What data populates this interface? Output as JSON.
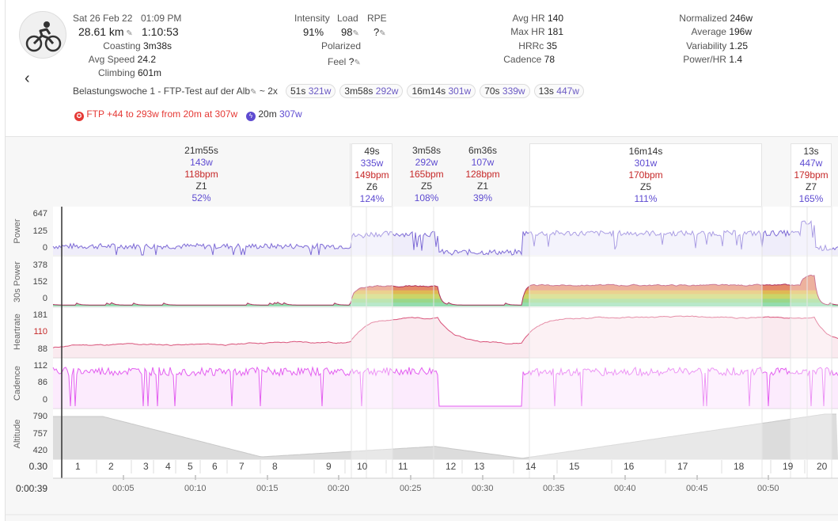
{
  "activity": {
    "date": "Sat 26 Feb 22",
    "time": "01:09 PM",
    "distance": "28.61 km",
    "duration": "1:10:53",
    "coasting_label": "Coasting",
    "coasting": "3m38s",
    "avg_speed_label": "Avg Speed",
    "avg_speed": "24.2",
    "climbing_label": "Climbing",
    "climbing": "601m"
  },
  "load": {
    "intensity_label": "Intensity",
    "intensity": "91%",
    "load_label": "Load",
    "load": "98",
    "rpe_label": "RPE",
    "rpe": "?",
    "polarized": "Polarized",
    "feel_label": "Feel",
    "feel": "?"
  },
  "hr": {
    "avg_hr_label": "Avg HR",
    "avg_hr": "140",
    "max_hr_label": "Max HR",
    "max_hr": "181",
    "hrrc_label": "HRRc",
    "hrrc": "35",
    "cadence_label": "Cadence",
    "cadence": "78"
  },
  "power": {
    "normalized_label": "Normalized",
    "normalized": "246w",
    "average_label": "Average",
    "average": "196w",
    "variability_label": "Variability",
    "variability": "1.25",
    "power_hr_label": "Power/HR",
    "power_hr": "1.4"
  },
  "title": "Belastungswoche 1 - FTP-Test auf der Alb",
  "tilde": "~",
  "x2": "2x",
  "chips": [
    {
      "d": "51s",
      "w": "321w"
    },
    {
      "d": "3m58s",
      "w": "292w"
    },
    {
      "d": "16m14s",
      "w": "301w"
    },
    {
      "d": "70s",
      "w": "339w"
    },
    {
      "d": "13s",
      "w": "447w"
    }
  ],
  "ftp_text": "FTP +44 to 293w from 20m at 307w",
  "twenty_label": "20m",
  "twenty_value": "307w",
  "intervals": [
    {
      "d": "21m55s",
      "w": "143w",
      "hr": "118bpm",
      "z": "Z1",
      "p": "52%"
    },
    {
      "d": "49s",
      "w": "335w",
      "hr": "149bpm",
      "z": "Z6",
      "p": "124%"
    },
    {
      "d": "3m58s",
      "w": "292w",
      "hr": "165bpm",
      "z": "Z5",
      "p": "108%"
    },
    {
      "d": "6m36s",
      "w": "107w",
      "hr": "128bpm",
      "z": "Z1",
      "p": "39%"
    },
    {
      "d": "16m14s",
      "w": "301w",
      "hr": "170bpm",
      "z": "Z5",
      "p": "111%"
    },
    {
      "d": "13s",
      "w": "447w",
      "hr": "179bpm",
      "z": "Z7",
      "p": "165%"
    }
  ],
  "panels": {
    "power": {
      "label": "Power",
      "ticks": [
        "647",
        "125",
        "0"
      ]
    },
    "power30": {
      "label": "30s Power",
      "ticks": [
        "378",
        "152",
        "0"
      ]
    },
    "heartrate": {
      "label": "Heartrate",
      "ticks": [
        "181",
        "110",
        "88"
      ]
    },
    "cadence": {
      "label": "Cadence",
      "ticks": [
        "112",
        "86",
        "0"
      ]
    },
    "altitude": {
      "label": "Altitude",
      "ticks": [
        "790",
        "757",
        "420"
      ]
    }
  },
  "lap_row_start": "0.30",
  "laps": [
    "1",
    "2",
    "3",
    "4",
    "5",
    "6",
    "7",
    "8",
    "9",
    "10",
    "11",
    "12",
    "13",
    "14",
    "15",
    "16",
    "17",
    "18",
    "19",
    "20"
  ],
  "x_start": "0:00:39",
  "x_ticks": [
    "00:05",
    "00:10",
    "00:15",
    "00:20",
    "00:25",
    "00:30",
    "00:35",
    "00:40",
    "00:45",
    "00:50"
  ],
  "colors": {
    "power": "#7e6bd6",
    "hr": "#d9537a",
    "cadence": "#e35ef0",
    "ftp": "#e53935",
    "accent": "#5e4bd1"
  }
}
